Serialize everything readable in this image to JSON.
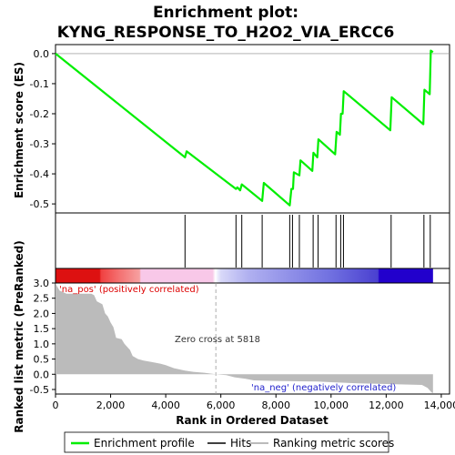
{
  "chart_data": {
    "type": "line",
    "title_line1": "Enrichment plot:",
    "title_line2": "KYNG_RESPONSE_TO_H2O2_VIA_ERCC6",
    "top_panel": {
      "ylabel": "Enrichment score (ES)",
      "ylim": [
        -0.53,
        0.03
      ],
      "yticks": [
        0.0,
        -0.1,
        -0.2,
        -0.3,
        -0.4,
        -0.5
      ],
      "ytick_labels": [
        "0.0",
        "-0.1",
        "-0.2",
        "-0.3",
        "-0.4",
        "-0.5"
      ],
      "series": {
        "name": "Enrichment profile",
        "color": "#00ee00",
        "points": [
          [
            0,
            0.0
          ],
          [
            4700,
            -0.345
          ],
          [
            4760,
            -0.325
          ],
          [
            6550,
            -0.45
          ],
          [
            6600,
            -0.445
          ],
          [
            6700,
            -0.455
          ],
          [
            6760,
            -0.435
          ],
          [
            7500,
            -0.49
          ],
          [
            7560,
            -0.43
          ],
          [
            8500,
            -0.505
          ],
          [
            8560,
            -0.45
          ],
          [
            8620,
            -0.45
          ],
          [
            8650,
            -0.395
          ],
          [
            8850,
            -0.405
          ],
          [
            8890,
            -0.355
          ],
          [
            9320,
            -0.39
          ],
          [
            9360,
            -0.33
          ],
          [
            9500,
            -0.345
          ],
          [
            9540,
            -0.285
          ],
          [
            10150,
            -0.335
          ],
          [
            10200,
            -0.26
          ],
          [
            10320,
            -0.27
          ],
          [
            10360,
            -0.2
          ],
          [
            10420,
            -0.2
          ],
          [
            10460,
            -0.125
          ],
          [
            12150,
            -0.255
          ],
          [
            12200,
            -0.145
          ],
          [
            13350,
            -0.235
          ],
          [
            13390,
            -0.12
          ],
          [
            13580,
            -0.135
          ],
          [
            13620,
            0.01
          ],
          [
            13700,
            0.005
          ]
        ]
      }
    },
    "hits": [
      4700,
      6550,
      6760,
      7500,
      8500,
      8600,
      8850,
      9350,
      9530,
      10180,
      10350,
      10450,
      12180,
      13370,
      13600
    ],
    "heatbar": {
      "stops": [
        {
          "x": 0,
          "color": "#dd1111"
        },
        {
          "x": 1600,
          "color": "#dd1111"
        },
        {
          "x": 1650,
          "color": "#f04040"
        },
        {
          "x": 2300,
          "color": "#f47070"
        },
        {
          "x": 3050,
          "color": "#f6a0a0"
        },
        {
          "x": 3100,
          "color": "#f8c8e8"
        },
        {
          "x": 5700,
          "color": "#f8c8e8"
        },
        {
          "x": 5800,
          "color": "#ffffff"
        },
        {
          "x": 6000,
          "color": "#d8d8f8"
        },
        {
          "x": 7000,
          "color": "#b0b0f0"
        },
        {
          "x": 10000,
          "color": "#7070e0"
        },
        {
          "x": 11700,
          "color": "#4a40d0"
        },
        {
          "x": 11750,
          "color": "#2200cc"
        },
        {
          "x": 13700,
          "color": "#2200cc"
        }
      ]
    },
    "bottom_panel": {
      "ylabel": "Ranked list metric (PreRanked)",
      "ylim": [
        -0.65,
        3.0
      ],
      "yticks": [
        3.0,
        2.5,
        2.0,
        1.5,
        1.0,
        0.5,
        0.0,
        -0.5
      ],
      "ytick_labels": [
        "3.0",
        "2.5",
        "2.0",
        "1.5",
        "1.0",
        "0.5",
        "0.0",
        "-0.5"
      ],
      "metric": [
        [
          0,
          3.0
        ],
        [
          50,
          2.9
        ],
        [
          150,
          2.75
        ],
        [
          400,
          2.65
        ],
        [
          1300,
          2.65
        ],
        [
          1400,
          2.6
        ],
        [
          1500,
          2.4
        ],
        [
          1700,
          2.3
        ],
        [
          1800,
          2.0
        ],
        [
          1900,
          1.9
        ],
        [
          2000,
          1.7
        ],
        [
          2100,
          1.55
        ],
        [
          2200,
          1.2
        ],
        [
          2400,
          1.15
        ],
        [
          2500,
          1.0
        ],
        [
          2700,
          0.8
        ],
        [
          2800,
          0.6
        ],
        [
          3000,
          0.5
        ],
        [
          3200,
          0.45
        ],
        [
          3500,
          0.4
        ],
        [
          3800,
          0.35
        ],
        [
          4000,
          0.3
        ],
        [
          4300,
          0.2
        ],
        [
          4700,
          0.12
        ],
        [
          5000,
          0.08
        ],
        [
          5400,
          0.05
        ],
        [
          5818,
          0.0
        ],
        [
          6200,
          -0.03
        ],
        [
          6500,
          -0.1
        ],
        [
          6900,
          -0.15
        ],
        [
          7200,
          -0.2
        ],
        [
          8000,
          -0.22
        ],
        [
          9500,
          -0.24
        ],
        [
          10000,
          -0.26
        ],
        [
          11000,
          -0.3
        ],
        [
          12000,
          -0.32
        ],
        [
          13300,
          -0.35
        ],
        [
          13500,
          -0.45
        ],
        [
          13650,
          -0.6
        ],
        [
          13700,
          -0.62
        ]
      ],
      "annotations": {
        "pos_label": "'na_pos' (positively correlated)",
        "neg_label": "'na_neg' (negatively correlated)",
        "zero_cross": "Zero cross at 5818",
        "zero_cross_x": 5818
      }
    },
    "xaxis": {
      "xlabel": "Rank in Ordered Dataset",
      "xlim": [
        0,
        14300
      ],
      "xticks": [
        0,
        2000,
        4000,
        6000,
        8000,
        10000,
        12000,
        14000
      ],
      "xtick_labels": [
        "0",
        "2,000",
        "4,000",
        "6,000",
        "8,000",
        "10,000",
        "12,000",
        "14,000"
      ]
    },
    "legend": [
      {
        "label": "Enrichment profile",
        "color": "#00ee00"
      },
      {
        "label": "Hits",
        "color": "#000000"
      },
      {
        "label": "Ranking metric scores",
        "color": "#bbbbbb"
      }
    ],
    "colors": {
      "pos": "#dd0000",
      "neg": "#2222cc",
      "fill": "#bbbbbb"
    }
  }
}
